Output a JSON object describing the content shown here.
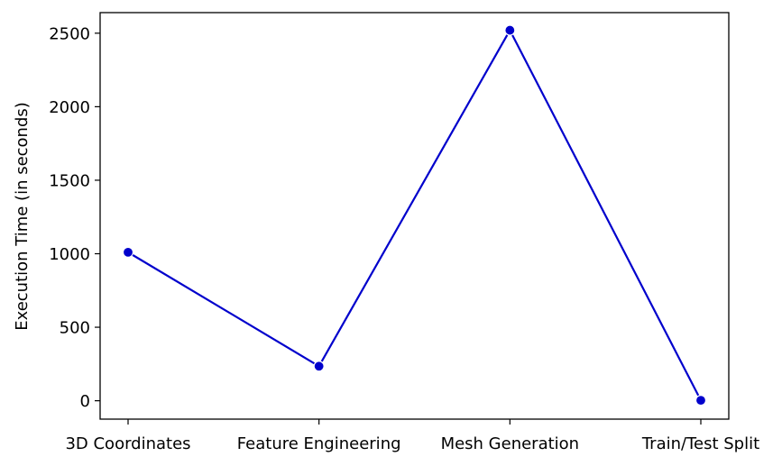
{
  "chart_data": {
    "type": "line",
    "title": "",
    "xlabel": "",
    "ylabel": "Execution Time (in seconds)",
    "categories": [
      "3D Coordinates",
      "Feature Engineering",
      "Mesh Generation",
      "Train/Test Split"
    ],
    "series": [
      {
        "values": [
          1010,
          235,
          2520,
          3
        ],
        "color": "#0000cc",
        "marker": "circle"
      }
    ],
    "yticks": [
      0,
      500,
      1000,
      1500,
      2000,
      2500
    ],
    "ylim": [
      -125,
      2640
    ],
    "grid": false,
    "legend": "none"
  }
}
